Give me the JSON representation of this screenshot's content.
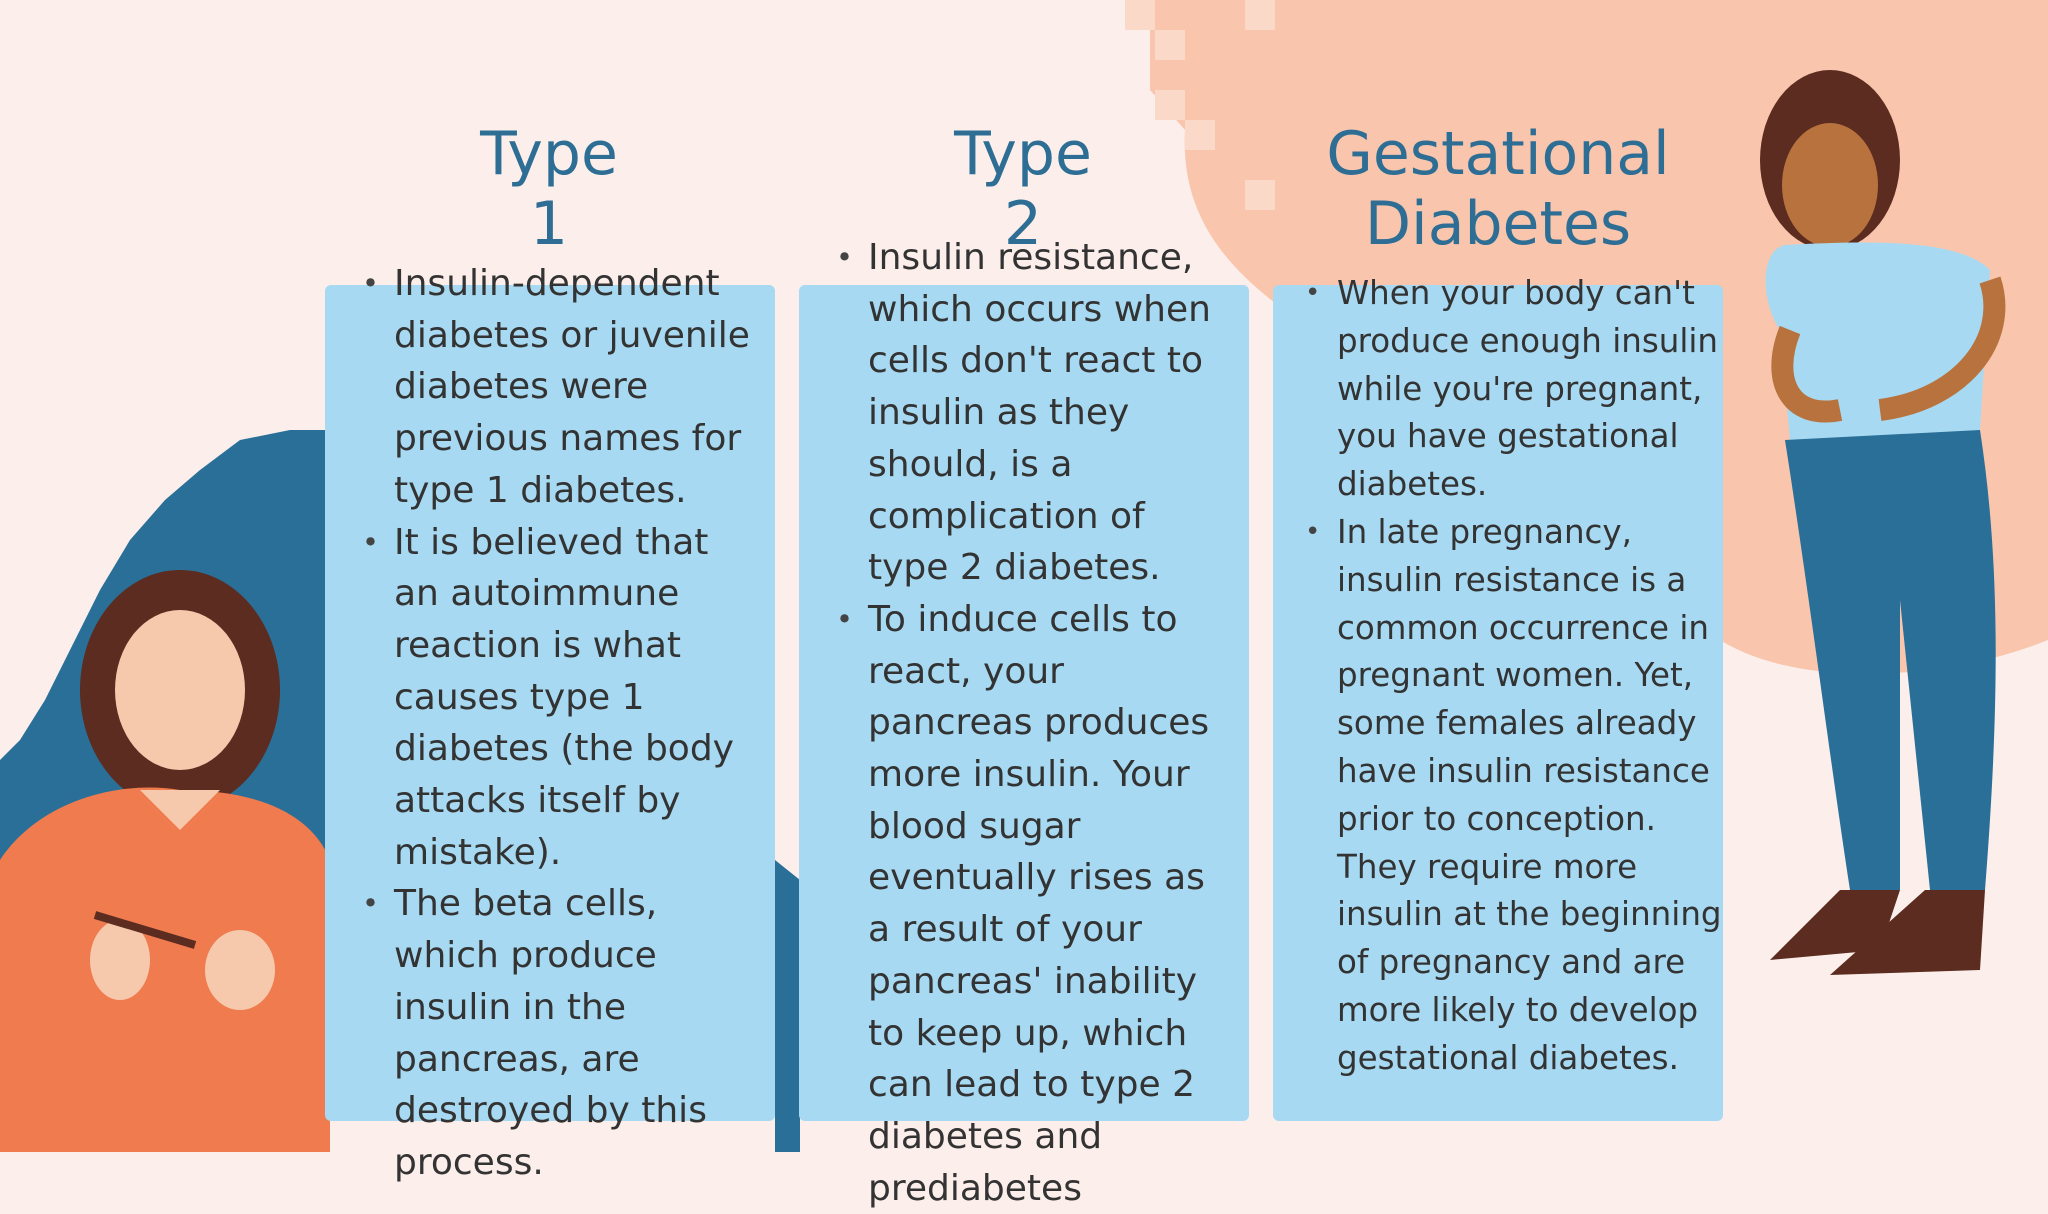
{
  "columns": [
    {
      "title_lines": [
        "Type",
        "1"
      ],
      "bullets": [
        "Insulin-dependent diabetes or juvenile diabetes were previous names for type 1 diabetes.",
        "It is believed that an autoimmune reaction is what causes type 1 diabetes (the body attacks itself by mistake).",
        "The beta cells, which produce insulin in the pancreas, are destroyed by this process."
      ]
    },
    {
      "title_lines": [
        "Type",
        "2"
      ],
      "bullets": [
        "Insulin resistance, which occurs when cells don't react to insulin as they should, is a complication of type 2 diabetes.",
        "To induce cells to react, your pancreas produces more insulin. Your blood sugar eventually rises as a result of your pancreas' inability to keep up, which can lead to type 2 diabetes and prediabetes"
      ]
    },
    {
      "title_lines": [
        "Gestational",
        "Diabetes"
      ],
      "bullets": [
        "When your body can't produce enough insulin while you're pregnant, you have gestational diabetes.",
        "In late pregnancy, insulin resistance is a common occurrence in pregnant women. Yet, some females already have insulin resistance prior to conception. They require more insulin at the beginning of pregnancy and are more likely to develop gestational diabetes."
      ]
    }
  ]
}
